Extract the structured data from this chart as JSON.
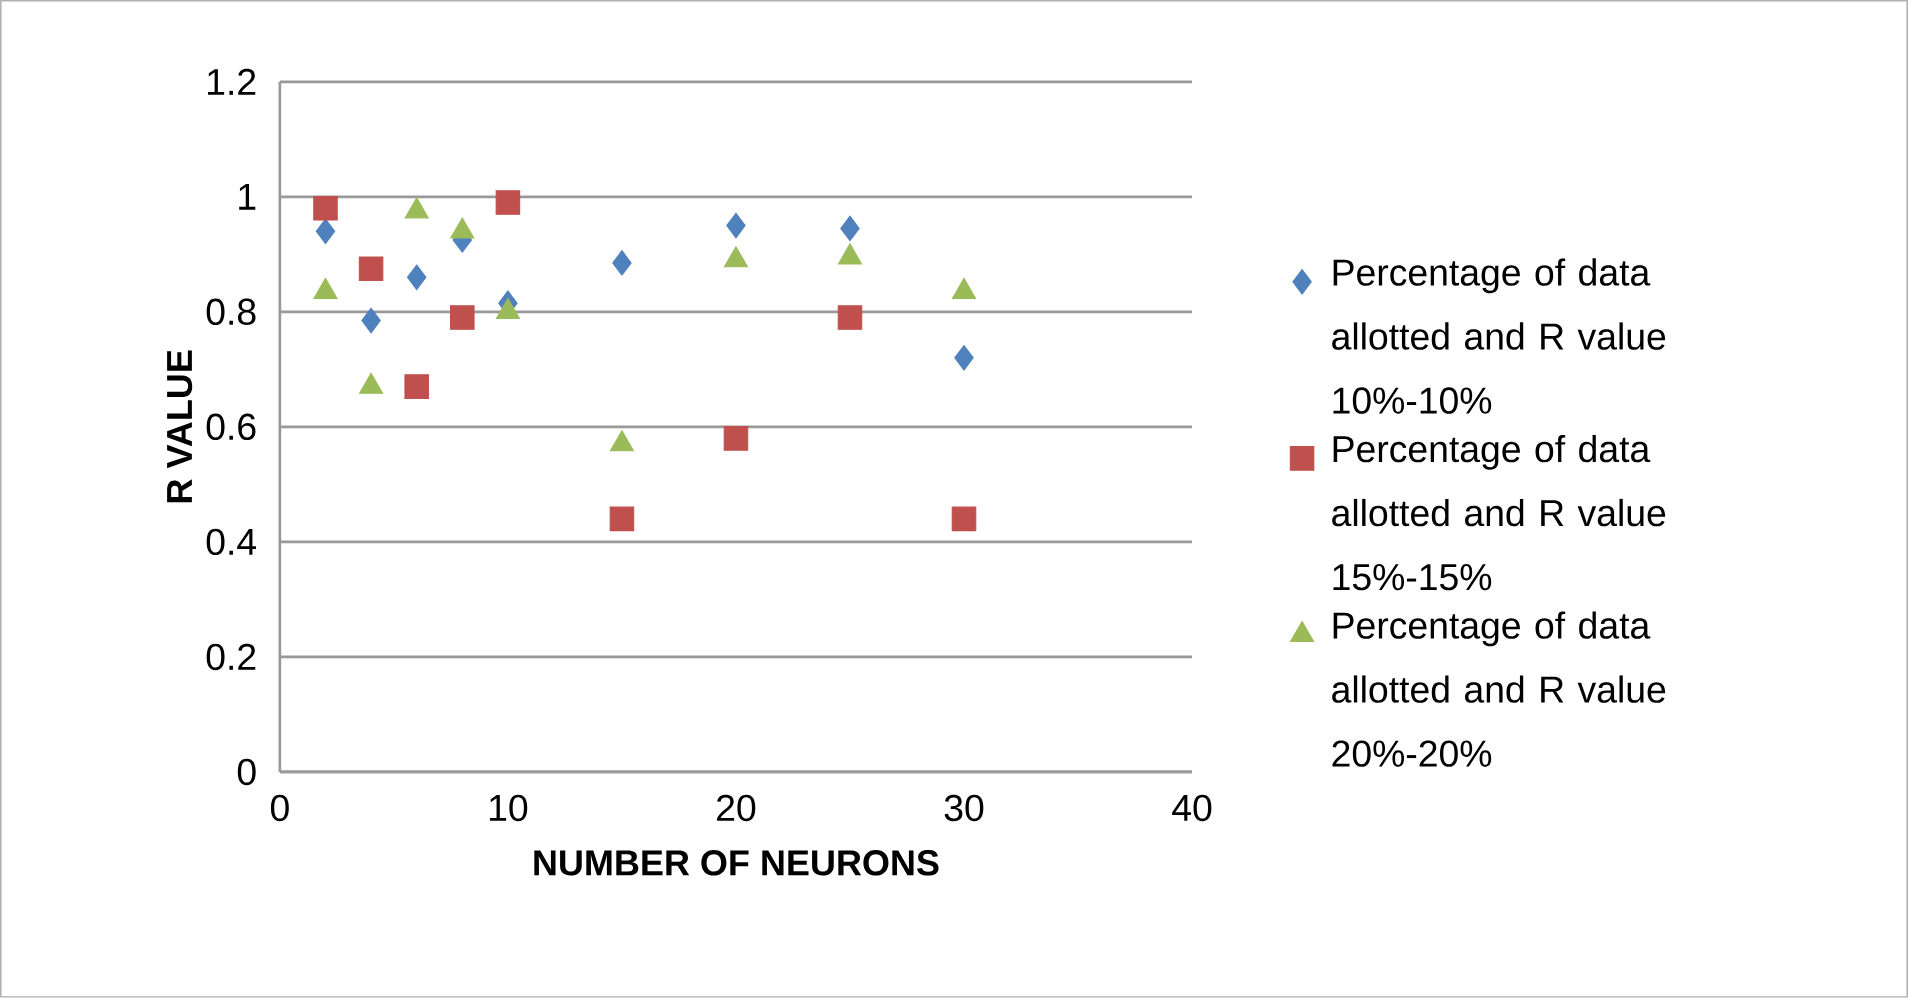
{
  "chart_data": {
    "type": "scatter",
    "xlabel": "NUMBER OF NEURONS",
    "ylabel": "R VALUE",
    "x": [
      2,
      4,
      6,
      8,
      10,
      15,
      20,
      25,
      30
    ],
    "xlim": [
      0,
      40
    ],
    "xticks": [
      0,
      10,
      20,
      30,
      40
    ],
    "ylim": [
      0,
      1.2
    ],
    "yticks": [
      {
        "value": 0,
        "label": "0"
      },
      {
        "value": 0.2,
        "label": "0.2"
      },
      {
        "value": 0.4,
        "label": "0.4"
      },
      {
        "value": 0.6,
        "label": "0.6"
      },
      {
        "value": 0.8,
        "label": "0.8"
      },
      {
        "value": 1,
        "label": "1"
      },
      {
        "value": 1.2,
        "label": "1.2"
      }
    ],
    "grid": "y",
    "legend": "right",
    "series": [
      {
        "name": "Percentage of data allotted and R value 10%-10%",
        "color": "#4f81bd",
        "marker": "diamond",
        "values": [
          0.94,
          0.785,
          0.86,
          0.925,
          0.815,
          0.885,
          0.95,
          0.945,
          0.72
        ]
      },
      {
        "name": "Percentage of data allotted and R value 15%-15%",
        "color": "#c0504d",
        "marker": "square",
        "values": [
          0.98,
          0.875,
          0.67,
          0.79,
          0.99,
          0.44,
          0.58,
          0.79,
          0.44
        ]
      },
      {
        "name": "Percentage of data allotted and R value 20%-20%",
        "color": "#9bbb59",
        "marker": "triangle",
        "values": [
          0.835,
          0.67,
          0.975,
          0.94,
          0.8,
          0.57,
          0.89,
          0.895,
          0.835
        ]
      }
    ]
  }
}
